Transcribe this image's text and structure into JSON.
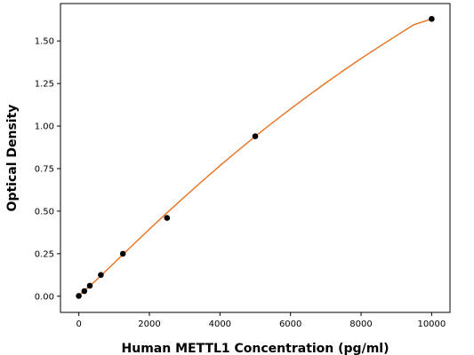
{
  "chart_data": {
    "type": "scatter",
    "title": "",
    "xlabel": "Human METTL1 Concentration (pg/ml)",
    "ylabel": "Optical Density",
    "xlim": [
      -520,
      10520
    ],
    "ylim": [
      -0.095,
      1.72
    ],
    "xticks": [
      0,
      2000,
      4000,
      6000,
      8000,
      10000
    ],
    "xtick_labels": [
      "0",
      "2000",
      "4000",
      "6000",
      "8000",
      "10000"
    ],
    "yticks": [
      0.0,
      0.25,
      0.5,
      0.75,
      1.0,
      1.25,
      1.5
    ],
    "ytick_labels": [
      "0.00",
      "0.25",
      "0.50",
      "0.75",
      "1.00",
      "1.25",
      "1.50"
    ],
    "grid": false,
    "legend": null,
    "series": [
      {
        "kind": "points",
        "color": "#000000",
        "x": [
          0,
          156,
          312,
          625,
          1250,
          2500,
          5000,
          10000
        ],
        "y": [
          0.002,
          0.03,
          0.062,
          0.125,
          0.25,
          0.46,
          0.94,
          1.63
        ]
      },
      {
        "kind": "fit-curve",
        "color": "#e8701e",
        "x": [
          0,
          500,
          1000,
          1500,
          2000,
          2500,
          3000,
          3500,
          4000,
          4500,
          5000,
          5500,
          6000,
          6500,
          7000,
          7500,
          8000,
          8500,
          9000,
          9500,
          10000
        ],
        "y": [
          0.003,
          0.096,
          0.195,
          0.295,
          0.394,
          0.49,
          0.585,
          0.677,
          0.767,
          0.854,
          0.939,
          1.021,
          1.101,
          1.178,
          1.253,
          1.326,
          1.397,
          1.465,
          1.531,
          1.596,
          1.63
        ]
      }
    ]
  }
}
